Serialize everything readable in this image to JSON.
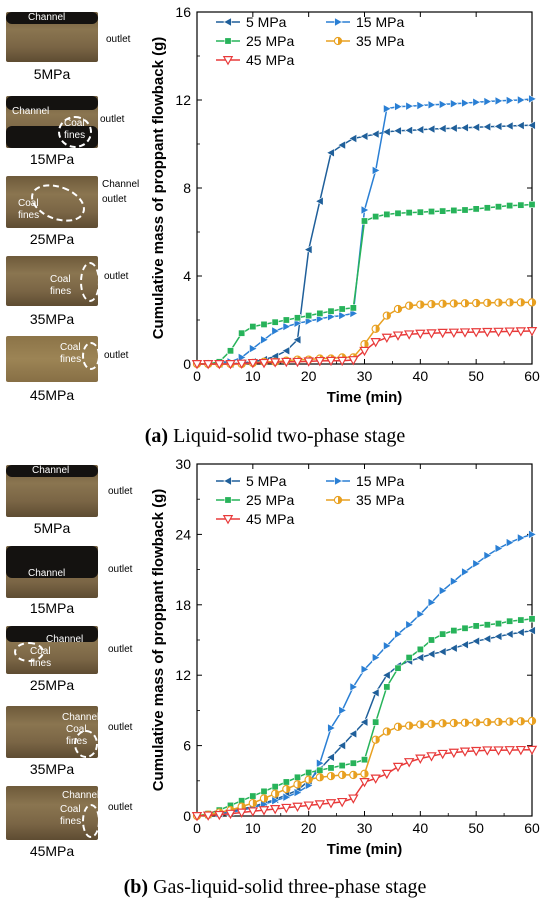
{
  "panels": [
    {
      "caption_letter": "(a)",
      "caption_text": " Liquid-solid two-phase stage",
      "photos": [
        {
          "pressure": "5MPa",
          "labels": [
            "Channel"
          ],
          "side": "outlet"
        },
        {
          "pressure": "15MPa",
          "labels": [
            "Channel",
            "Coal",
            "fines"
          ],
          "side": "outlet"
        },
        {
          "pressure": "25MPa",
          "labels": [
            "Coal",
            "fines"
          ],
          "side_lines": [
            "Channel",
            "outlet"
          ]
        },
        {
          "pressure": "35MPa",
          "labels": [
            "Coal",
            "fines"
          ],
          "side": "outlet"
        },
        {
          "pressure": "45MPa",
          "labels": [
            "Coal",
            "fines"
          ],
          "side": "outlet"
        }
      ]
    },
    {
      "caption_letter": "(b)",
      "caption_text": " Gas-liquid-solid three-phase stage",
      "photos": [
        {
          "pressure": "5MPa",
          "labels": [
            "Channel"
          ],
          "side": "outlet"
        },
        {
          "pressure": "15MPa",
          "labels": [
            "Channel"
          ],
          "side": "outlet"
        },
        {
          "pressure": "25MPa",
          "labels": [
            "Channel",
            "Coal",
            "fines"
          ],
          "side": "outlet"
        },
        {
          "pressure": "35MPa",
          "labels": [
            "Channel",
            "Coal",
            "fines"
          ],
          "side": "outlet"
        },
        {
          "pressure": "45MPa",
          "labels": [
            "Channel",
            "Coal",
            "fines"
          ],
          "side": "outlet"
        }
      ]
    }
  ],
  "chart_data": [
    {
      "type": "line",
      "xlabel": "Time (min)",
      "ylabel": "Cumulative mass of proppant flowback (g)",
      "xlim": [
        0,
        60
      ],
      "ylim": [
        0,
        16
      ],
      "xticks": [
        0,
        10,
        20,
        30,
        40,
        50,
        60
      ],
      "yticks": [
        0,
        4,
        8,
        12,
        16
      ],
      "legend_position": "top-left",
      "series": [
        {
          "name": "5 MPa",
          "color": "#1f5f9a",
          "marker": "tri-left",
          "x": [
            0,
            2,
            4,
            6,
            8,
            10,
            12,
            14,
            16,
            18,
            20,
            22,
            24,
            26,
            28,
            30,
            32,
            34,
            36,
            38,
            40,
            42,
            44,
            46,
            48,
            50,
            52,
            54,
            56,
            58,
            60
          ],
          "y": [
            0,
            0,
            0,
            0,
            0.05,
            0.1,
            0.2,
            0.35,
            0.6,
            1.1,
            5.2,
            7.4,
            9.6,
            9.95,
            10.25,
            10.35,
            10.45,
            10.55,
            10.6,
            10.62,
            10.65,
            10.68,
            10.7,
            10.72,
            10.74,
            10.76,
            10.78,
            10.8,
            10.82,
            10.84,
            10.85
          ]
        },
        {
          "name": "15 MPa",
          "color": "#2a7fd4",
          "marker": "tri-right",
          "x": [
            0,
            2,
            4,
            6,
            8,
            10,
            12,
            14,
            16,
            18,
            20,
            22,
            24,
            26,
            28,
            30,
            32,
            34,
            36,
            38,
            40,
            42,
            44,
            46,
            48,
            50,
            52,
            54,
            56,
            58,
            60
          ],
          "y": [
            0,
            0,
            0.05,
            0.1,
            0.3,
            0.7,
            1.1,
            1.5,
            1.7,
            1.85,
            1.95,
            2.05,
            2.15,
            2.2,
            2.3,
            7.0,
            8.8,
            11.6,
            11.7,
            11.72,
            11.75,
            11.78,
            11.8,
            11.83,
            11.86,
            11.9,
            11.93,
            11.96,
            11.98,
            12.0,
            12.05
          ]
        },
        {
          "name": "25 MPa",
          "color": "#27b35a",
          "marker": "square",
          "x": [
            0,
            2,
            4,
            6,
            8,
            10,
            12,
            14,
            16,
            18,
            20,
            22,
            24,
            26,
            28,
            30,
            32,
            34,
            36,
            38,
            40,
            42,
            44,
            46,
            48,
            50,
            52,
            54,
            56,
            58,
            60
          ],
          "y": [
            0,
            0,
            0.1,
            0.6,
            1.4,
            1.7,
            1.8,
            1.9,
            2.0,
            2.1,
            2.2,
            2.3,
            2.4,
            2.5,
            2.55,
            6.5,
            6.7,
            6.8,
            6.85,
            6.88,
            6.9,
            6.93,
            6.95,
            6.98,
            7.0,
            7.05,
            7.1,
            7.15,
            7.2,
            7.22,
            7.25
          ]
        },
        {
          "name": "35 MPa",
          "color": "#e8a020",
          "marker": "half-circle",
          "x": [
            0,
            2,
            4,
            6,
            8,
            10,
            12,
            14,
            16,
            18,
            20,
            22,
            24,
            26,
            28,
            30,
            32,
            34,
            36,
            38,
            40,
            42,
            44,
            46,
            48,
            50,
            52,
            54,
            56,
            58,
            60
          ],
          "y": [
            0,
            0,
            0,
            0,
            0,
            0.05,
            0.1,
            0.1,
            0.15,
            0.2,
            0.2,
            0.25,
            0.25,
            0.3,
            0.3,
            0.9,
            1.6,
            2.2,
            2.5,
            2.65,
            2.7,
            2.72,
            2.74,
            2.75,
            2.76,
            2.77,
            2.78,
            2.79,
            2.8,
            2.8,
            2.8
          ]
        },
        {
          "name": "45 MPa",
          "color": "#e83a3a",
          "marker": "tri-down",
          "x": [
            0,
            2,
            4,
            6,
            8,
            10,
            12,
            14,
            16,
            18,
            20,
            22,
            24,
            26,
            28,
            30,
            32,
            34,
            36,
            38,
            40,
            42,
            44,
            46,
            48,
            50,
            52,
            54,
            56,
            58,
            60
          ],
          "y": [
            0,
            0,
            0,
            0,
            0.02,
            0.05,
            0.05,
            0.08,
            0.1,
            0.1,
            0.12,
            0.14,
            0.15,
            0.15,
            0.18,
            0.6,
            1.0,
            1.2,
            1.3,
            1.35,
            1.38,
            1.4,
            1.42,
            1.43,
            1.44,
            1.45,
            1.46,
            1.47,
            1.48,
            1.49,
            1.5
          ]
        }
      ]
    },
    {
      "type": "line",
      "xlabel": "Time (min)",
      "ylabel": "Cumulative mass of proppant flowback (g)",
      "xlim": [
        0,
        60
      ],
      "ylim": [
        0,
        30
      ],
      "xticks": [
        0,
        10,
        20,
        30,
        40,
        50,
        60
      ],
      "yticks": [
        0,
        6,
        12,
        18,
        24,
        30
      ],
      "legend_position": "top-left",
      "series": [
        {
          "name": "5 MPa",
          "color": "#1f5f9a",
          "marker": "tri-left",
          "x": [
            0,
            2,
            4,
            6,
            8,
            10,
            12,
            14,
            16,
            18,
            20,
            22,
            24,
            26,
            28,
            30,
            32,
            34,
            36,
            38,
            40,
            42,
            44,
            46,
            48,
            50,
            52,
            54,
            56,
            58,
            60
          ],
          "y": [
            0,
            0.1,
            0.2,
            0.4,
            0.6,
            0.8,
            1.1,
            1.4,
            1.8,
            2.2,
            3.0,
            4.0,
            5.0,
            6.0,
            7.0,
            8.0,
            10.5,
            12.0,
            12.8,
            13.2,
            13.5,
            13.8,
            14.0,
            14.3,
            14.6,
            14.9,
            15.1,
            15.3,
            15.5,
            15.65,
            15.8
          ]
        },
        {
          "name": "15 MPa",
          "color": "#2a7fd4",
          "marker": "tri-right",
          "x": [
            0,
            2,
            4,
            6,
            8,
            10,
            12,
            14,
            16,
            18,
            20,
            22,
            24,
            26,
            28,
            30,
            32,
            34,
            36,
            38,
            40,
            42,
            44,
            46,
            48,
            50,
            52,
            54,
            56,
            58,
            60
          ],
          "y": [
            0,
            0.1,
            0.2,
            0.3,
            0.5,
            0.7,
            1.0,
            1.3,
            1.6,
            2.0,
            2.6,
            4.5,
            7.5,
            9.0,
            11.0,
            12.5,
            13.5,
            14.5,
            15.5,
            16.3,
            17.2,
            18.2,
            19.2,
            20.0,
            20.8,
            21.5,
            22.2,
            22.8,
            23.3,
            23.7,
            24.0
          ]
        },
        {
          "name": "25 MPa",
          "color": "#27b35a",
          "marker": "square",
          "x": [
            0,
            2,
            4,
            6,
            8,
            10,
            12,
            14,
            16,
            18,
            20,
            22,
            24,
            26,
            28,
            30,
            32,
            34,
            36,
            38,
            40,
            42,
            44,
            46,
            48,
            50,
            52,
            54,
            56,
            58,
            60
          ],
          "y": [
            0,
            0.2,
            0.5,
            0.9,
            1.3,
            1.7,
            2.1,
            2.5,
            2.9,
            3.3,
            3.7,
            3.9,
            4.1,
            4.3,
            4.5,
            4.8,
            8.0,
            11.0,
            12.6,
            13.5,
            14.2,
            15.0,
            15.5,
            15.8,
            16.0,
            16.2,
            16.3,
            16.4,
            16.6,
            16.7,
            16.8
          ]
        },
        {
          "name": "35 MPa",
          "color": "#e8a020",
          "marker": "half-circle",
          "x": [
            0,
            2,
            4,
            6,
            8,
            10,
            12,
            14,
            16,
            18,
            20,
            22,
            24,
            26,
            28,
            30,
            32,
            34,
            36,
            38,
            40,
            42,
            44,
            46,
            48,
            50,
            52,
            54,
            56,
            58,
            60
          ],
          "y": [
            0,
            0.1,
            0.3,
            0.5,
            0.8,
            1.1,
            1.5,
            1.9,
            2.3,
            2.7,
            3.1,
            3.3,
            3.4,
            3.5,
            3.5,
            3.6,
            6.5,
            7.2,
            7.6,
            7.7,
            7.8,
            7.85,
            7.9,
            7.92,
            7.95,
            7.97,
            8.0,
            8.02,
            8.05,
            8.07,
            8.1
          ]
        },
        {
          "name": "45 MPa",
          "color": "#e83a3a",
          "marker": "tri-down",
          "x": [
            0,
            2,
            4,
            6,
            8,
            10,
            12,
            14,
            16,
            18,
            20,
            22,
            24,
            26,
            28,
            30,
            32,
            34,
            36,
            38,
            40,
            42,
            44,
            46,
            48,
            50,
            52,
            54,
            56,
            58,
            60
          ],
          "y": [
            0,
            0.05,
            0.1,
            0.2,
            0.3,
            0.4,
            0.5,
            0.6,
            0.7,
            0.8,
            0.9,
            1.0,
            1.1,
            1.2,
            1.5,
            2.9,
            3.2,
            3.6,
            4.2,
            4.6,
            4.9,
            5.1,
            5.3,
            5.4,
            5.5,
            5.55,
            5.6,
            5.6,
            5.62,
            5.63,
            5.65
          ]
        }
      ]
    }
  ]
}
